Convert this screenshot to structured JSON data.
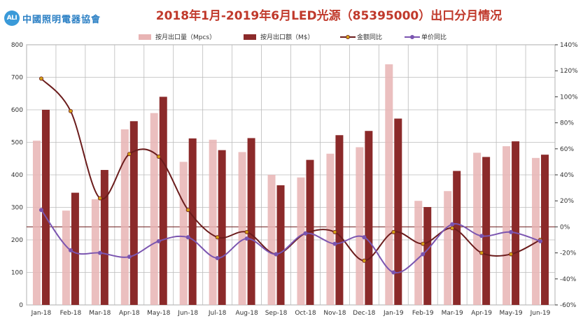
{
  "logo": {
    "badge": "ALI",
    "text": "中國照明電器協會"
  },
  "chart_data": {
    "type": "bar",
    "title": "2018年1月-2019年6月LED光源（85395000）出口分月情况",
    "categories": [
      "Jan-18",
      "Feb-18",
      "Mar-18",
      "Apr-18",
      "May-18",
      "Jun-18",
      "Jul-18",
      "Aug-18",
      "Sep-18",
      "Oct-18",
      "Nov-18",
      "Dec-18",
      "Jan-19",
      "Feb-19",
      "Mar-19",
      "Apr-19",
      "May-19",
      "Jun-19"
    ],
    "series": [
      {
        "name": "按月出口量（Mpcs）",
        "kind": "bar",
        "axis": "left",
        "color": "#e8b4b4",
        "values": [
          505,
          290,
          325,
          540,
          590,
          440,
          508,
          470,
          400,
          392,
          465,
          485,
          740,
          320,
          350,
          468,
          488,
          452
        ]
      },
      {
        "name": "按月出口额（M$）",
        "kind": "bar",
        "axis": "left",
        "color": "#8b2a2a",
        "values": [
          600,
          345,
          415,
          565,
          640,
          512,
          476,
          513,
          368,
          446,
          522,
          535,
          573,
          301,
          412,
          455,
          503,
          462
        ]
      },
      {
        "name": "金额同比",
        "kind": "line",
        "axis": "right",
        "color": "#6b1c1c",
        "marker": "#d4a017",
        "values": [
          114,
          89,
          22,
          56,
          54,
          13,
          -8,
          -4,
          -21,
          -5,
          -4,
          -26,
          -4,
          -13,
          -1,
          -20,
          -21,
          -10
        ]
      },
      {
        "name": "单价同比",
        "kind": "line",
        "axis": "right",
        "color": "#7b55b0",
        "marker": "#7b55b0",
        "values": [
          13,
          -18,
          -20,
          -23,
          -11,
          -8,
          -24,
          -9,
          -21,
          -5,
          -13,
          -8,
          -35,
          -21,
          2,
          -7,
          -4,
          -11
        ]
      }
    ],
    "ylim_left": [
      0,
      800
    ],
    "ylim_right": [
      -60,
      140
    ],
    "left_ticks": [
      "0",
      "100",
      "200",
      "300",
      "400",
      "500",
      "600",
      "700",
      "800"
    ],
    "right_ticks": [
      "-60%",
      "-40%",
      "-20%",
      "0%",
      "20%",
      "40%",
      "60%",
      "80%",
      "100%",
      "120%",
      "140%"
    ],
    "grid": true,
    "legend": "top"
  }
}
